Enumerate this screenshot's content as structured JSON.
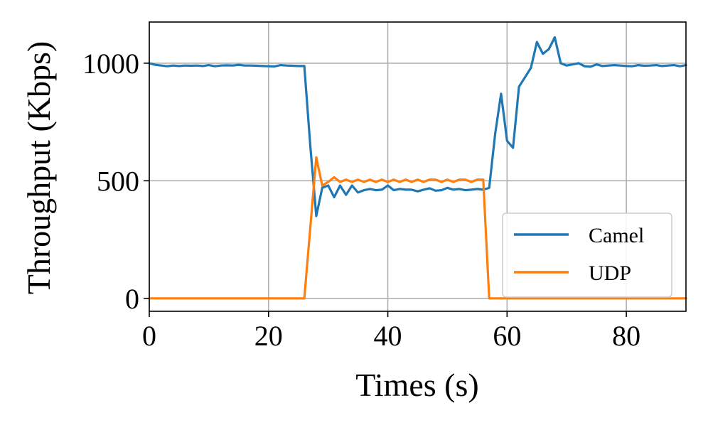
{
  "chart_data": {
    "type": "line",
    "title": "",
    "xlabel": "Times (s)",
    "ylabel": "Throughput (Kbps)",
    "xlim": [
      0,
      90
    ],
    "ylim": [
      -55,
      1175
    ],
    "xticks": [
      0,
      20,
      40,
      60,
      80
    ],
    "yticks": [
      0,
      500,
      1000
    ],
    "grid": true,
    "legend_position": "lower-right",
    "series": [
      {
        "name": "Camel",
        "color": "#1f77b4",
        "x": [
          0,
          1,
          2,
          3,
          4,
          5,
          6,
          7,
          8,
          9,
          10,
          11,
          12,
          13,
          14,
          15,
          16,
          17,
          18,
          19,
          20,
          21,
          22,
          23,
          24,
          25,
          26,
          27,
          28,
          29,
          30,
          31,
          32,
          33,
          34,
          35,
          36,
          37,
          38,
          39,
          40,
          41,
          42,
          43,
          44,
          45,
          46,
          47,
          48,
          49,
          50,
          51,
          52,
          53,
          54,
          55,
          56,
          57,
          58,
          59,
          60,
          61,
          62,
          63,
          64,
          65,
          66,
          67,
          68,
          69,
          70,
          71,
          72,
          73,
          74,
          75,
          76,
          77,
          78,
          79,
          80,
          81,
          82,
          83,
          84,
          85,
          86,
          87,
          88,
          89,
          90
        ],
        "y": [
          1000,
          993,
          990,
          987,
          990,
          988,
          990,
          989,
          990,
          988,
          992,
          987,
          990,
          991,
          990,
          993,
          990,
          990,
          989,
          988,
          987,
          986,
          992,
          990,
          989,
          988,
          988,
          650,
          350,
          470,
          480,
          430,
          480,
          440,
          480,
          450,
          460,
          465,
          460,
          462,
          480,
          460,
          465,
          462,
          462,
          455,
          462,
          468,
          458,
          460,
          470,
          462,
          465,
          460,
          462,
          465,
          462,
          470,
          700,
          870,
          670,
          640,
          900,
          940,
          980,
          1090,
          1040,
          1060,
          1110,
          1000,
          990,
          995,
          1000,
          987,
          985,
          995,
          988,
          990,
          992,
          990,
          988,
          987,
          992,
          989,
          990,
          992,
          988,
          990,
          992,
          987,
          992
        ]
      },
      {
        "name": "UDP",
        "color": "#ff7f0e",
        "x": [
          0,
          26,
          28,
          29,
          30,
          31,
          32,
          33,
          34,
          35,
          36,
          37,
          38,
          39,
          40,
          41,
          42,
          43,
          44,
          45,
          46,
          47,
          48,
          49,
          50,
          51,
          52,
          53,
          54,
          55,
          56,
          57,
          58,
          90
        ],
        "y": [
          0,
          0,
          600,
          480,
          495,
          515,
          495,
          505,
          495,
          505,
          495,
          505,
          495,
          505,
          495,
          505,
          495,
          505,
          495,
          505,
          495,
          505,
          505,
          495,
          505,
          495,
          505,
          505,
          495,
          505,
          505,
          0,
          0,
          0
        ]
      }
    ]
  }
}
